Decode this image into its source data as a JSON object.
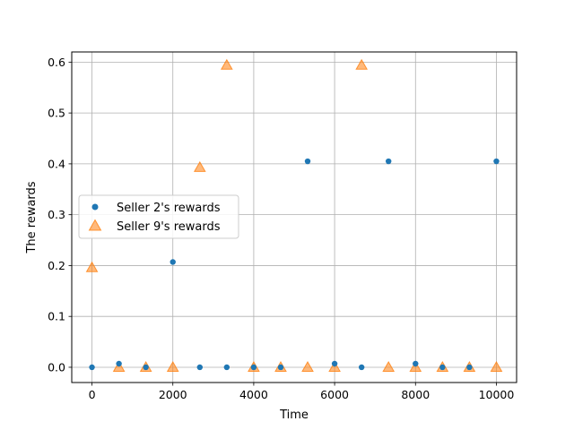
{
  "chart_data": {
    "type": "scatter",
    "title": "",
    "xlabel": "Time",
    "ylabel": "The rewards",
    "xlim": [
      -500,
      10500
    ],
    "ylim": [
      -0.03,
      0.62
    ],
    "grid": true,
    "legend_position": "center-left",
    "x_ticks": [
      0,
      2000,
      4000,
      6000,
      8000,
      10000
    ],
    "x_tick_labels": [
      "0",
      "2000",
      "4000",
      "6000",
      "8000",
      "10000"
    ],
    "y_ticks": [
      0.0,
      0.1,
      0.2,
      0.3,
      0.4,
      0.5,
      0.6
    ],
    "y_tick_labels": [
      "0.0",
      "0.1",
      "0.2",
      "0.3",
      "0.4",
      "0.5",
      "0.6"
    ],
    "series": [
      {
        "name": "Seller 2's rewards",
        "marker": "circle",
        "color": "#1f77b4",
        "x": [
          0,
          667,
          1333,
          2000,
          2667,
          3333,
          4000,
          4667,
          5333,
          6000,
          6667,
          7333,
          8000,
          8667,
          9333,
          10000
        ],
        "y": [
          0.0,
          0.007,
          0.0,
          0.207,
          0.0,
          0.0,
          0.0,
          0.0,
          0.405,
          0.007,
          0.0,
          0.405,
          0.007,
          0.0,
          0.0,
          0.405
        ]
      },
      {
        "name": "Seller 9's rewards",
        "marker": "triangle",
        "color": "#ff7f0e",
        "x": [
          0,
          667,
          1333,
          2000,
          2667,
          3333,
          4000,
          4667,
          5333,
          6000,
          6667,
          7333,
          8000,
          8667,
          9333,
          10000
        ],
        "y": [
          0.196,
          0.0,
          0.0,
          0.0,
          0.393,
          0.594,
          0.0,
          0.0,
          0.0,
          0.0,
          0.594,
          0.0,
          0.0,
          0.0,
          0.0,
          0.0
        ]
      }
    ]
  }
}
